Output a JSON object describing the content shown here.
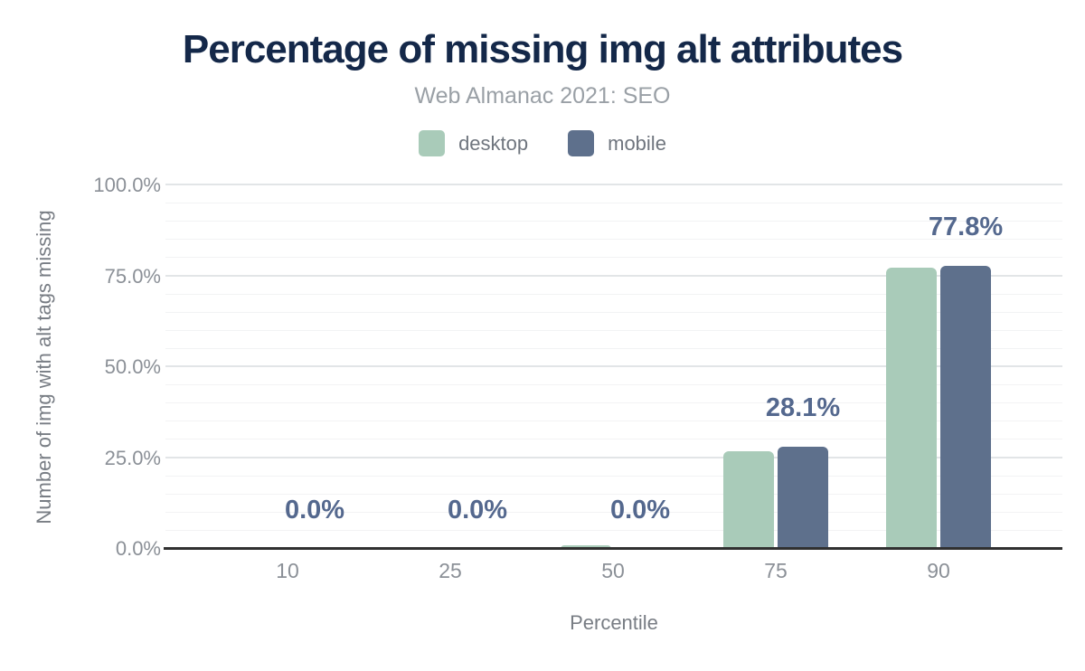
{
  "chart": {
    "title": "Percentage of missing img alt attributes",
    "subtitle": "Web Almanac 2021: SEO"
  },
  "colors": {
    "title": "#142849",
    "subtitle": "#9aa0a6",
    "desktop": "#a9cbb9",
    "mobile": "#5e708c",
    "data_label": "#54688e",
    "axis_line": "#303030",
    "tick_label": "#8b9097",
    "axis_title": "#787d84",
    "legend_label": "#6f757e",
    "grid_major": "#e2e5e7",
    "grid_minor": "#f2f3f4"
  },
  "chart_data": {
    "type": "bar",
    "title": "Percentage of missing img alt attributes",
    "subtitle": "Web Almanac 2021: SEO",
    "categories": [
      "10",
      "25",
      "50",
      "75",
      "90"
    ],
    "series": [
      {
        "name": "desktop",
        "color": "#a9cbb9",
        "values": [
          0,
          0,
          1.0,
          26.8,
          77.3
        ]
      },
      {
        "name": "mobile",
        "color": "#5e708c",
        "values": [
          0,
          0,
          0,
          28.1,
          77.8
        ]
      }
    ],
    "data_labels": {
      "series": "mobile",
      "values": [
        "0.0%",
        "0.0%",
        "0.0%",
        "28.1%",
        "77.8%"
      ]
    },
    "xlabel": "Percentile",
    "ylabel": "Number of img with alt tags missing",
    "ylim": [
      0,
      100
    ],
    "y_major_ticks": [
      "0.0%",
      "25.0%",
      "50.0%",
      "75.0%",
      "100.0%"
    ],
    "y_major_step": 25,
    "y_minor_step": 5,
    "grid": "horizontal",
    "legend_position": "top"
  }
}
